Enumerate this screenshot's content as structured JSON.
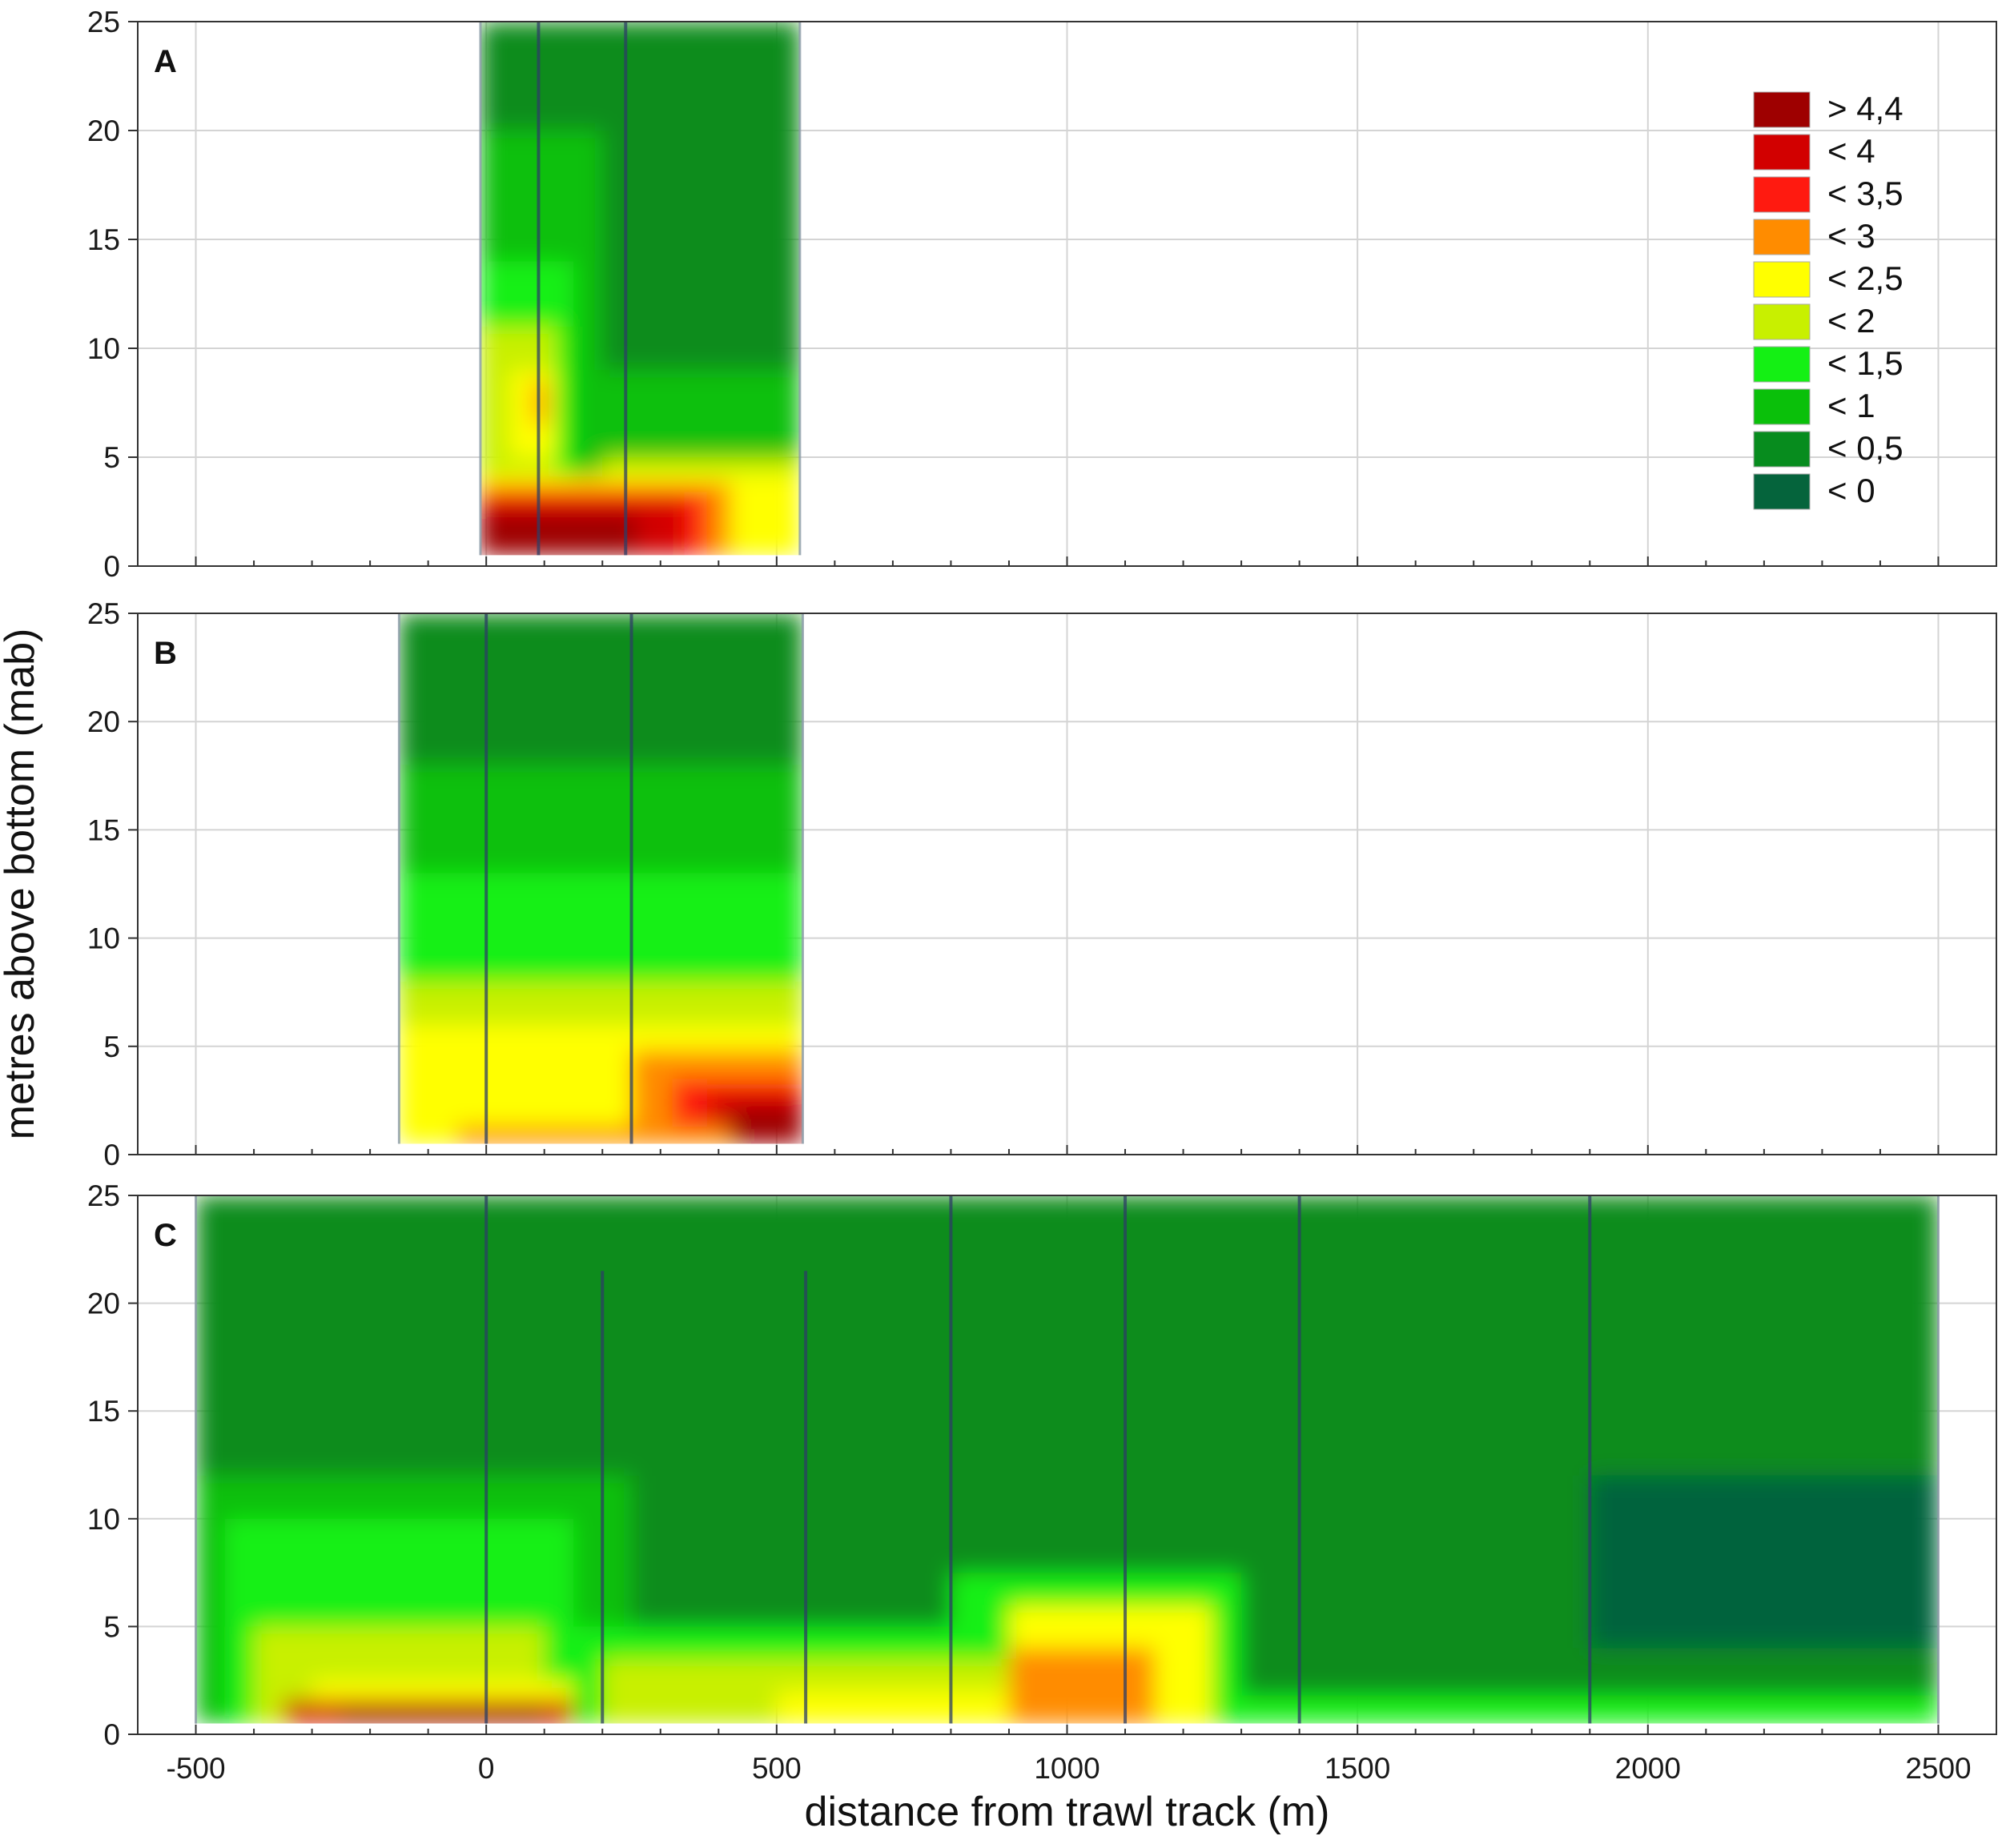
{
  "chart_data": {
    "type": "heatmap",
    "title": "",
    "xlabel": "distance from trawl track (m)",
    "ylabel": "metres above bottom (mab)",
    "xlim": [
      -600,
      2600
    ],
    "ylim": [
      0,
      25
    ],
    "xticks": [
      "-500",
      "0",
      "500",
      "1000",
      "1500",
      "2000",
      "2500"
    ],
    "yticks": [
      "0",
      "5",
      "10",
      "15",
      "20",
      "25"
    ],
    "grid": true,
    "legend": {
      "placement": "top-right of panel A",
      "entries": [
        {
          "label": "> 4,4",
          "color": "#9e0000"
        },
        {
          "label": "< 4",
          "color": "#d20000"
        },
        {
          "label": "< 3,5",
          "color": "#ff1a10"
        },
        {
          "label": "< 3",
          "color": "#ff8c00"
        },
        {
          "label": "< 2,5",
          "color": "#ffff00"
        },
        {
          "label": "< 2",
          "color": "#c8f000"
        },
        {
          "label": "< 1,5",
          "color": "#14f014"
        },
        {
          "label": "< 1",
          "color": "#0ac00a"
        },
        {
          "label": "< 0,5",
          "color": "#078c1e"
        },
        {
          "label": "< 0",
          "color": "#05643c"
        }
      ]
    },
    "panels": [
      {
        "label": "A",
        "x_range": [
          -10,
          540
        ],
        "stations": [
          -10,
          90,
          240,
          540
        ],
        "regions": [
          {
            "xmin": -10,
            "xmax": 540,
            "ymin": 0.5,
            "ymax": 25,
            "value": 0.3
          },
          {
            "xmin": -10,
            "xmax": 200,
            "ymin": 0.5,
            "ymax": 20,
            "value": 0.9
          },
          {
            "xmin": -10,
            "xmax": 150,
            "ymin": 0.5,
            "ymax": 14,
            "value": 1.3
          },
          {
            "xmin": 150,
            "xmax": 540,
            "ymin": 0.5,
            "ymax": 9,
            "value": 0.9
          },
          {
            "xmin": -10,
            "xmax": 120,
            "ymin": 0.5,
            "ymax": 11,
            "value": 1.8
          },
          {
            "xmin": 40,
            "xmax": 120,
            "ymin": 5,
            "ymax": 9,
            "value": 2.3
          },
          {
            "xmin": 80,
            "xmax": 105,
            "ymin": 6.5,
            "ymax": 8.5,
            "value": 2.8
          },
          {
            "xmin": 200,
            "xmax": 540,
            "ymin": 0.5,
            "ymax": 5,
            "value": 1.8
          },
          {
            "xmin": -10,
            "xmax": 540,
            "ymin": 0.5,
            "ymax": 4.2,
            "value": 2.3
          },
          {
            "xmin": -10,
            "xmax": 420,
            "ymin": 0.5,
            "ymax": 3.8,
            "value": 2.8
          },
          {
            "xmin": -10,
            "xmax": 380,
            "ymin": 0.5,
            "ymax": 3.4,
            "value": 3.3
          },
          {
            "xmin": -10,
            "xmax": 340,
            "ymin": 0.5,
            "ymax": 3.0,
            "value": 3.8
          },
          {
            "xmin": -10,
            "xmax": 260,
            "ymin": 0.5,
            "ymax": 2.4,
            "value": 4.5
          }
        ]
      },
      {
        "label": "B",
        "x_range": [
          -150,
          545
        ],
        "stations": [
          -150,
          0,
          250,
          545
        ],
        "regions": [
          {
            "xmin": -150,
            "xmax": 545,
            "ymin": 0.5,
            "ymax": 25,
            "value": 0.3
          },
          {
            "xmin": -150,
            "xmax": 545,
            "ymin": 0.5,
            "ymax": 18,
            "value": 0.8
          },
          {
            "xmin": -150,
            "xmax": 545,
            "ymin": 0.5,
            "ymax": 13,
            "value": 1.2
          },
          {
            "xmin": -150,
            "xmax": 545,
            "ymin": 0.5,
            "ymax": 8,
            "value": 1.8
          },
          {
            "xmin": -150,
            "xmax": 545,
            "ymin": 0.5,
            "ymax": 6,
            "value": 2.2
          },
          {
            "xmin": 250,
            "xmax": 545,
            "ymin": 0.5,
            "ymax": 4.8,
            "value": 2.8
          },
          {
            "xmin": 320,
            "xmax": 545,
            "ymin": 0.5,
            "ymax": 3.5,
            "value": 3.3
          },
          {
            "xmin": 380,
            "xmax": 545,
            "ymin": 0.5,
            "ymax": 2.8,
            "value": 3.8
          },
          {
            "xmin": 420,
            "xmax": 545,
            "ymin": 0.5,
            "ymax": 2.2,
            "value": 4.5
          },
          {
            "xmin": -50,
            "xmax": 420,
            "ymin": 0.5,
            "ymax": 1.3,
            "value": 2.8
          }
        ]
      },
      {
        "label": "C",
        "x_range": [
          -500,
          2500
        ],
        "stations": [
          -500,
          0,
          200,
          550,
          800,
          1100,
          1400,
          1900,
          2500
        ],
        "regions": [
          {
            "xmin": -500,
            "xmax": 2500,
            "ymin": 0.5,
            "ymax": 25,
            "value": 0.3
          },
          {
            "xmin": -500,
            "xmax": 250,
            "ymin": 0.5,
            "ymax": 12,
            "value": 0.8
          },
          {
            "xmin": -450,
            "xmax": 150,
            "ymin": 0.5,
            "ymax": 10,
            "value": 1.3
          },
          {
            "xmin": 150,
            "xmax": 800,
            "ymin": 0.5,
            "ymax": 5,
            "value": 1.3
          },
          {
            "xmin": 800,
            "xmax": 1300,
            "ymin": 0.5,
            "ymax": 7.5,
            "value": 1.3
          },
          {
            "xmin": 1300,
            "xmax": 2500,
            "ymin": 0.5,
            "ymax": 1.8,
            "value": 1.2
          },
          {
            "xmin": -400,
            "xmax": 100,
            "ymin": 0.5,
            "ymax": 5,
            "value": 1.8
          },
          {
            "xmin": 200,
            "xmax": 1250,
            "ymin": 0.5,
            "ymax": 3.5,
            "value": 1.8
          },
          {
            "xmin": 900,
            "xmax": 1250,
            "ymin": 0.5,
            "ymax": 6,
            "value": 2.2
          },
          {
            "xmin": -300,
            "xmax": 150,
            "ymin": 0.5,
            "ymax": 2.5,
            "value": 2.3
          },
          {
            "xmin": 500,
            "xmax": 1200,
            "ymin": 0.5,
            "ymax": 2.0,
            "value": 2.3
          },
          {
            "xmin": 900,
            "xmax": 1150,
            "ymin": 0.5,
            "ymax": 4,
            "value": 2.6
          },
          {
            "xmin": 950,
            "xmax": 1150,
            "ymin": 0.5,
            "ymax": 2.5,
            "value": 2.9
          },
          {
            "xmin": -350,
            "xmax": 150,
            "ymin": 0.5,
            "ymax": 1.6,
            "value": 3.5
          },
          {
            "xmin": -250,
            "xmax": 100,
            "ymin": 0.5,
            "ymax": 1.2,
            "value": 4.1
          },
          {
            "xmin": -100,
            "xmax": 80,
            "ymin": 0.5,
            "ymax": 1.0,
            "value": 4.6
          },
          {
            "xmin": 1900,
            "xmax": 2500,
            "ymin": 4,
            "ymax": 12,
            "value": -0.1
          }
        ]
      }
    ]
  }
}
